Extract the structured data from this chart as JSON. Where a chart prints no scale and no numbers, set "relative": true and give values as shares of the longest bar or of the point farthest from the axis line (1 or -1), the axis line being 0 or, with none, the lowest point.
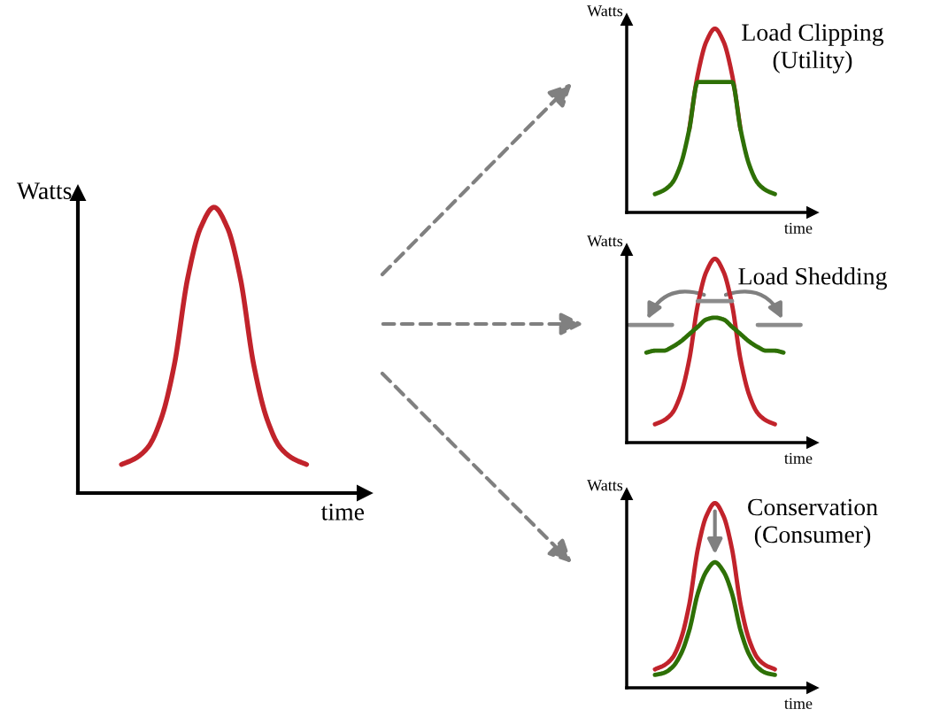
{
  "chart_data": [
    {
      "type": "line",
      "relative": true,
      "xlabel": "time",
      "ylabel": "Watts",
      "categories": [
        null,
        null,
        null,
        null,
        null,
        null,
        null,
        null,
        null,
        null,
        null,
        null,
        null,
        null,
        null,
        null,
        null,
        null,
        null,
        null,
        null,
        null
      ],
      "series": [
        {
          "color": "#c1232b",
          "values": [
            null,
            null,
            null,
            0.1,
            0.12,
            0.16,
            0.26,
            0.45,
            0.75,
            0.93,
            1,
            0.93,
            0.75,
            0.45,
            0.26,
            0.16,
            0.12,
            0.1,
            null,
            null,
            null,
            null
          ]
        }
      ]
    },
    {
      "type": "line",
      "relative": true,
      "title": "Load Clipping\n(Utility)",
      "xlabel": "time",
      "ylabel": "Watts",
      "categories": [
        null,
        null,
        null,
        null,
        null,
        null,
        null,
        null,
        null,
        null,
        null,
        null,
        null,
        null,
        null,
        null,
        null,
        null,
        null,
        null,
        null,
        null
      ],
      "series": [
        {
          "color": "#c1232b",
          "values": [
            null,
            null,
            null,
            null,
            null,
            null,
            null,
            0.45,
            0.75,
            0.93,
            1,
            0.93,
            0.75,
            0.45,
            null,
            null,
            null,
            null,
            null,
            null,
            null,
            null
          ]
        },
        {
          "color": "#2e7006",
          "values": [
            null,
            null,
            null,
            0.1,
            0.12,
            0.16,
            0.26,
            0.45,
            0.71,
            0.71,
            0.71,
            0.71,
            0.71,
            0.45,
            0.26,
            0.16,
            0.12,
            0.1,
            null,
            null,
            null,
            null
          ]
        }
      ]
    },
    {
      "type": "line",
      "relative": true,
      "title": "Load Shedding",
      "xlabel": "time",
      "ylabel": "Watts",
      "categories": [
        null,
        null,
        null,
        null,
        null,
        null,
        null,
        null,
        null,
        null,
        null,
        null,
        null,
        null,
        null,
        null,
        null,
        null,
        null,
        null,
        null,
        null
      ],
      "series": [
        {
          "color": "#c1232b",
          "values": [
            null,
            null,
            null,
            0.1,
            0.12,
            0.16,
            0.26,
            0.45,
            0.75,
            0.93,
            1,
            0.93,
            0.75,
            0.45,
            0.26,
            0.16,
            0.12,
            0.1,
            null,
            null,
            null,
            null
          ]
        },
        {
          "color": "#2e7006",
          "values": [
            null,
            null,
            0.49,
            0.5,
            0.5,
            0.52,
            0.55,
            0.59,
            0.63,
            0.67,
            0.68,
            0.67,
            0.63,
            0.59,
            0.55,
            0.52,
            0.5,
            0.5,
            0.49,
            null,
            null,
            null
          ]
        },
        {
          "color": "#8c8c8c",
          "values": [
            0.64,
            0.64,
            0.64,
            0.64,
            0.64,
            0.64,
            null,
            null,
            0.77,
            0.77,
            0.77,
            0.77,
            0.77,
            null,
            null,
            0.64,
            0.64,
            0.64,
            0.64,
            0.64,
            0.64,
            null
          ]
        }
      ]
    },
    {
      "type": "line",
      "relative": true,
      "title": "Conservation\n(Consumer)",
      "xlabel": "time",
      "ylabel": "Watts",
      "categories": [
        null,
        null,
        null,
        null,
        null,
        null,
        null,
        null,
        null,
        null,
        null,
        null,
        null,
        null,
        null,
        null,
        null,
        null,
        null,
        null,
        null,
        null
      ],
      "series": [
        {
          "color": "#c1232b",
          "values": [
            null,
            null,
            null,
            0.1,
            0.12,
            0.16,
            0.26,
            0.45,
            0.75,
            0.93,
            1,
            0.93,
            0.75,
            0.45,
            0.26,
            0.16,
            0.12,
            0.1,
            null,
            null,
            null,
            null
          ]
        },
        {
          "color": "#2e7006",
          "values": [
            null,
            null,
            null,
            0.07,
            0.08,
            0.11,
            0.18,
            0.31,
            0.51,
            0.63,
            0.68,
            0.63,
            0.51,
            0.31,
            0.18,
            0.11,
            0.08,
            0.07,
            null,
            null,
            null,
            null
          ]
        }
      ]
    }
  ]
}
